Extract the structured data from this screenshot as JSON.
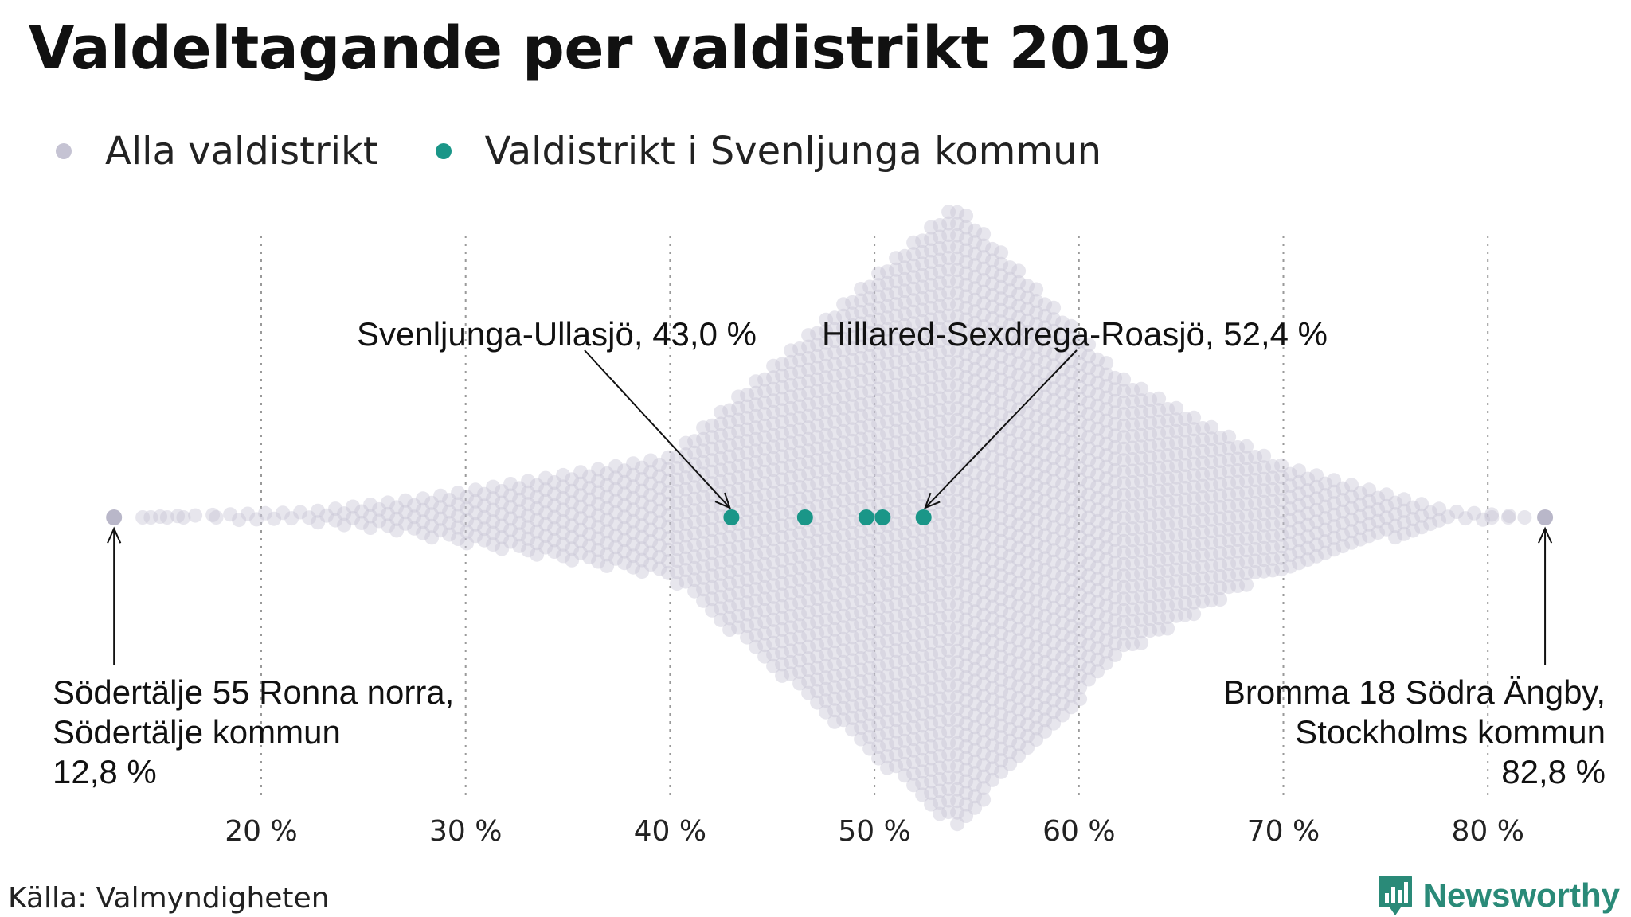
{
  "title": "Valdeltagande per valdistrikt 2019",
  "legend": {
    "all": {
      "label": "Alla valdistrikt",
      "color": "#c5c3d3"
    },
    "highlight": {
      "label": "Valdistrikt i Svenljunga kommun",
      "color": "#1a9688"
    }
  },
  "annotations": {
    "svenljunga_ullasjo": "Svenljunga-Ullasjö, 43,0 %",
    "hillared": "Hillared-Sexdrega-Roasjö, 52,4 %",
    "min_line1": "Södertälje 55 Ronna norra,",
    "min_line2": "Södertälje kommun",
    "min_line3": "12,8 %",
    "max_line1": "Bromma 18 Södra Ängby,",
    "max_line2": "Stockholms kommun",
    "max_line3": "82,8 %"
  },
  "source": "Källa: Valmyndigheten",
  "brand": {
    "name": "Newsworthy",
    "color": "#2a8a78"
  },
  "chart_data": {
    "type": "scatter",
    "subtype": "beeswarm",
    "xlabel": "",
    "ylabel": "",
    "xlim": [
      12,
      84
    ],
    "x_ticks": [
      20,
      30,
      40,
      50,
      60,
      70,
      80
    ],
    "x_tick_labels": [
      "20 %",
      "30 %",
      "40 %",
      "50 %",
      "60 %",
      "70 %",
      "80 %"
    ],
    "grid": "vertical dotted",
    "series": [
      {
        "name": "Alla valdistrikt",
        "distribution": "approximately 6000 districts, dense between 25 % and 75 %, peak around 54 %",
        "min": 12.8,
        "max": 82.8,
        "peak": 54
      },
      {
        "name": "Valdistrikt i Svenljunga kommun",
        "values": [
          43.0,
          46.6,
          49.6,
          50.4,
          52.4
        ]
      }
    ],
    "labeled_points": [
      {
        "label": "Södertälje 55 Ronna norra, Södertälje kommun",
        "value": 12.8
      },
      {
        "label": "Bromma 18 Södra Ängby, Stockholms kommun",
        "value": 82.8
      },
      {
        "label": "Svenljunga-Ullasjö",
        "value": 43.0
      },
      {
        "label": "Hillared-Sexdrega-Roasjö",
        "value": 52.4
      }
    ]
  }
}
